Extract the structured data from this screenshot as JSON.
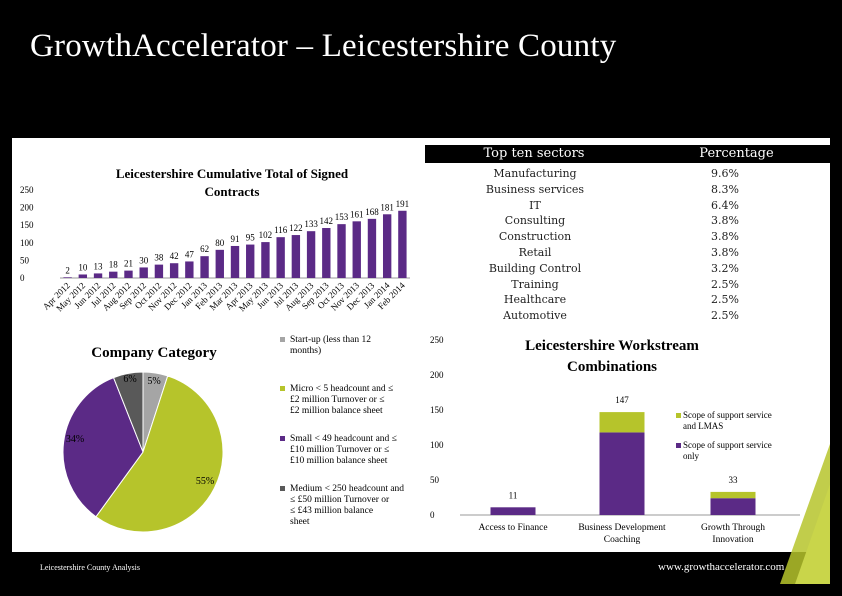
{
  "title": "GrowthAccelerator – Leicestershire County",
  "footer": {
    "left": "Leicestershire County Analysis",
    "right": "www.growthaccelerator.com"
  },
  "sectors_table": {
    "header_sector": "Top ten sectors",
    "header_pct": "Percentage",
    "rows": [
      {
        "sector": "Manufacturing",
        "pct": "9.6%"
      },
      {
        "sector": "Business services",
        "pct": "8.3%"
      },
      {
        "sector": "IT",
        "pct": "6.4%"
      },
      {
        "sector": "Consulting",
        "pct": "3.8%"
      },
      {
        "sector": "Construction",
        "pct": "3.8%"
      },
      {
        "sector": "Retail",
        "pct": "3.8%"
      },
      {
        "sector": "Building Control",
        "pct": "3.2%"
      },
      {
        "sector": "Training",
        "pct": "2.5%"
      },
      {
        "sector": "Healthcare",
        "pct": "2.5%"
      },
      {
        "sector": "Automotive",
        "pct": "2.5%"
      }
    ]
  },
  "chart_data": [
    {
      "type": "bar",
      "title": "Leicestershire Cumulative Total of Signed Contracts",
      "categories": [
        "Apr 2012",
        "May 2012",
        "Jun 2012",
        "Jul 2012",
        "Aug 2012",
        "Sep 2012",
        "Oct 2012",
        "Nov 2012",
        "Dec 2012",
        "Jan 2013",
        "Feb 2013",
        "Mar 2013",
        "Apr 2013",
        "May 2013",
        "Jun 2013",
        "Jul 2013",
        "Aug 2013",
        "Sep 2013",
        "Oct 2013",
        "Nov 2013",
        "Dec 2013",
        "Jan 2014",
        "Feb 2014"
      ],
      "values": [
        2,
        10,
        13,
        18,
        21,
        30,
        38,
        42,
        47,
        62,
        80,
        91,
        95,
        102,
        116,
        122,
        133,
        142,
        153,
        161,
        168,
        181,
        191
      ],
      "ylim": [
        0,
        250
      ],
      "yticks": [
        0,
        50,
        100,
        150,
        200,
        250
      ],
      "color": "#5b2a86"
    },
    {
      "type": "pie",
      "title": "Company Category",
      "slices": [
        {
          "label": "Start-up (less than 12 months)",
          "value": 5,
          "pct_label": "5%",
          "color": "#a5a5a5"
        },
        {
          "label": "Micro < 5 headcount and ≤ £2 million Turnover or ≤ £2 million balance sheet",
          "value": 55,
          "pct_label": "55%",
          "color": "#b6c42b"
        },
        {
          "label": "Small < 49 headcount and ≤ £10 million Turnover or ≤ £10 million balance sheet",
          "value": 34,
          "pct_label": "34%",
          "color": "#5b2a86"
        },
        {
          "label": "Medium < 250 headcount and ≤ £50 million Turnover or ≤ £43 million balance sheet",
          "value": 6,
          "pct_label": "6%",
          "color": "#595959"
        }
      ]
    },
    {
      "type": "bar",
      "stacked": true,
      "title": "Leicestershire Workstream Combinations",
      "categories": [
        "Access to Finance",
        "Business Development Coaching",
        "Growth Through Innovation"
      ],
      "series": [
        {
          "name": "Scope of support service only",
          "values": [
            11,
            118,
            24
          ],
          "color": "#5b2a86"
        },
        {
          "name": "Scope of support service and LMAS",
          "values": [
            0,
            29,
            9
          ],
          "color": "#b6c42b"
        }
      ],
      "totals": [
        "11",
        "147",
        "33"
      ],
      "ylim": [
        0,
        250
      ],
      "yticks": [
        0,
        50,
        100,
        150,
        200,
        250
      ]
    }
  ]
}
